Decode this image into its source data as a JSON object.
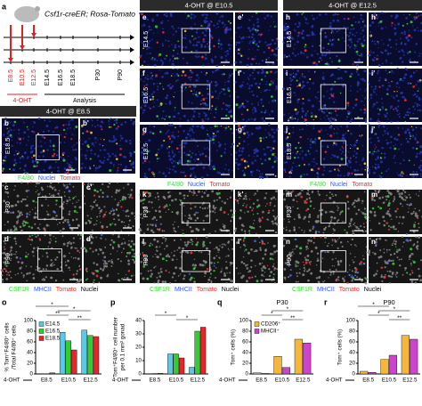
{
  "panel_a": {
    "letter": "a",
    "title": "Csf1r-creER; Rosa-Tomato",
    "timepoints": [
      "E8.5",
      "E10.5",
      "E12.5",
      "E14.5",
      "E16.5",
      "E18.5",
      "P30",
      "P90"
    ],
    "treatment": "4-OHT",
    "analysis": "Analysis"
  },
  "headers": [
    "4-OHT @ E8.5",
    "4-OHT @ E10.5",
    "4-OHT @ E12.5"
  ],
  "image_panels": [
    {
      "letter": "b",
      "row_label": "E18.5"
    },
    {
      "letter": "b'"
    },
    {
      "letter": "c",
      "row_label": "P30"
    },
    {
      "letter": "c'"
    },
    {
      "letter": "d",
      "row_label": "P90"
    },
    {
      "letter": "d'"
    },
    {
      "letter": "e",
      "row_label": "E14.5"
    },
    {
      "letter": "e'"
    },
    {
      "letter": "f",
      "row_label": "E16.5"
    },
    {
      "letter": "f'"
    },
    {
      "letter": "g",
      "row_label": "E18.5"
    },
    {
      "letter": "g'"
    },
    {
      "letter": "k",
      "row_label": "P30"
    },
    {
      "letter": "k'"
    },
    {
      "letter": "l",
      "row_label": "P90"
    },
    {
      "letter": "l'"
    },
    {
      "letter": "h",
      "row_label": "E14.5"
    },
    {
      "letter": "h'"
    },
    {
      "letter": "i",
      "row_label": "E16.5"
    },
    {
      "letter": "i'"
    },
    {
      "letter": "j",
      "row_label": "E18.5"
    },
    {
      "letter": "j'"
    },
    {
      "letter": "m",
      "row_label": "P30"
    },
    {
      "letter": "m'"
    },
    {
      "letter": "n",
      "row_label": "P90"
    },
    {
      "letter": "n'"
    }
  ],
  "stain_legends": [
    [
      {
        "text": "F4/80",
        "color": "#33dd33"
      },
      {
        "text": "Nuclei",
        "color": "#3355ff"
      },
      {
        "text": "Tomato",
        "color": "#ff2222"
      }
    ],
    [
      {
        "text": "F4/80",
        "color": "#33dd33"
      },
      {
        "text": "Nuclei",
        "color": "#3355ff"
      },
      {
        "text": "Tomato",
        "color": "#ff2222"
      }
    ],
    [
      {
        "text": "F4/80",
        "color": "#33dd33"
      },
      {
        "text": "Nuclei",
        "color": "#3355ff"
      },
      {
        "text": "Tomato",
        "color": "#ff2222"
      }
    ],
    [
      {
        "text": "CSF1R",
        "color": "#33dd33"
      },
      {
        "text": "MHCII",
        "color": "#3355ff"
      },
      {
        "text": "Tomato",
        "color": "#ff2222"
      },
      {
        "text": "Nuclei",
        "color": "#000000"
      }
    ],
    [
      {
        "text": "CSF1R",
        "color": "#33dd33"
      },
      {
        "text": "MHCII",
        "color": "#3355ff"
      },
      {
        "text": "Tomato",
        "color": "#ff2222"
      },
      {
        "text": "Nuclei",
        "color": "#000000"
      }
    ],
    [
      {
        "text": "CSF1R",
        "color": "#33dd33"
      },
      {
        "text": "MHCII",
        "color": "#3355ff"
      },
      {
        "text": "Tomato",
        "color": "#ff2222"
      },
      {
        "text": "Nuclei",
        "color": "#000000"
      }
    ]
  ],
  "chart_data": [
    {
      "type": "bar",
      "letter": "o",
      "ylabel": [
        "% Tom⁺F4/80⁺ cells",
        "/Total F4/80⁺ cells"
      ],
      "xlabel": "4-OHT",
      "categories": [
        "E8.5",
        "E10.5",
        "E12.5"
      ],
      "series": [
        {
          "name": "E14.5",
          "color": "#5bc8e8",
          "values": [
            null,
            78,
            82
          ]
        },
        {
          "name": "E16.5",
          "color": "#33cc33",
          "values": [
            null,
            62,
            72
          ]
        },
        {
          "name": "E18.5",
          "color": "#e8232a",
          "values": [
            2,
            45,
            70
          ]
        }
      ],
      "ylim": [
        0,
        100
      ],
      "yticks": [
        0,
        20,
        40,
        60,
        80,
        100
      ],
      "legend": true,
      "annotations": [
        "**",
        "**",
        "*",
        "*"
      ]
    },
    {
      "type": "bar",
      "letter": "p",
      "ylabel": [
        "Tom⁺F4/80⁺ cell number",
        "per 0.1 mm² gonad"
      ],
      "xlabel": "4-OHT",
      "categories": [
        "E8.5",
        "E10.5",
        "E12.5"
      ],
      "series": [
        {
          "name": "E14.5",
          "color": "#5bc8e8",
          "values": [
            0.2,
            15,
            5
          ]
        },
        {
          "name": "E16.5",
          "color": "#33cc33",
          "values": [
            0.3,
            15,
            32
          ]
        },
        {
          "name": "E18.5",
          "color": "#e8232a",
          "values": [
            0.5,
            12,
            35
          ]
        }
      ],
      "ylim": [
        0,
        40
      ],
      "yticks": [
        0,
        10,
        20,
        30,
        40
      ],
      "legend": false,
      "annotations": [
        "*",
        "*"
      ]
    },
    {
      "type": "bar",
      "letter": "q",
      "title": "P30",
      "ylabel": [
        "Tom⁺ cells (%)"
      ],
      "xlabel": "4-OHT",
      "categories": [
        "E8.5",
        "E10.5",
        "E12.5"
      ],
      "series": [
        {
          "name": "CD206⁺",
          "color": "#f5b73b",
          "values": [
            2,
            33,
            65
          ]
        },
        {
          "name": "MHCII⁺",
          "color": "#cc44cc",
          "values": [
            1,
            12,
            58
          ]
        }
      ],
      "ylim": [
        0,
        100
      ],
      "yticks": [
        0,
        20,
        40,
        60,
        80,
        100
      ],
      "legend": true,
      "annotations": [
        "**",
        "*",
        "*"
      ]
    },
    {
      "type": "bar",
      "letter": "r",
      "title": "P90",
      "ylabel": [
        "Tom⁺ cells (%)"
      ],
      "xlabel": "4-OHT",
      "categories": [
        "E8.5",
        "E10.5",
        "E12.5"
      ],
      "series": [
        {
          "name": "CD206⁺",
          "color": "#f5b73b",
          "values": [
            5,
            27,
            72
          ]
        },
        {
          "name": "MHCII⁺",
          "color": "#cc44cc",
          "values": [
            3,
            35,
            65
          ]
        }
      ],
      "ylim": [
        0,
        100
      ],
      "yticks": [
        0,
        20,
        40,
        60,
        80,
        100
      ],
      "legend": false,
      "annotations": [
        "**",
        "*",
        "*",
        "*"
      ]
    }
  ]
}
